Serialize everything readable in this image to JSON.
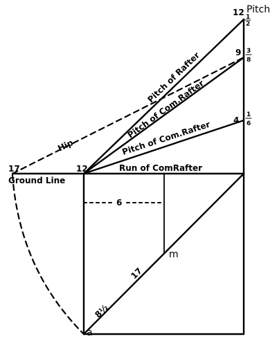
{
  "diagram": {
    "pitch_header": "Pitch",
    "labels": {
      "pitch_of_rafter": "Pitch of Rafter",
      "pitch_of_com_rafter_upper": "Pitch of Com.Rafter",
      "pitch_of_com_rafter_lower": "Pitch of Com.Rafter",
      "hip": "Hip",
      "run_of_com_rafter": "Run of ComRafter",
      "ground_line": "Ground Line",
      "six": "6",
      "seventeen_diag": "17",
      "eight_half": "8½",
      "m_point": "m",
      "a_point": "a",
      "left_seventeen": "17",
      "left_twelve": "12"
    },
    "right_scale": {
      "top_12": "12",
      "top_frac_num": "1",
      "top_frac_den": "2",
      "mid_9": "9",
      "mid_frac_num": "3",
      "mid_frac_den": "8",
      "low_4": "4",
      "low_frac_num": "1",
      "low_frac_den": "6"
    }
  }
}
